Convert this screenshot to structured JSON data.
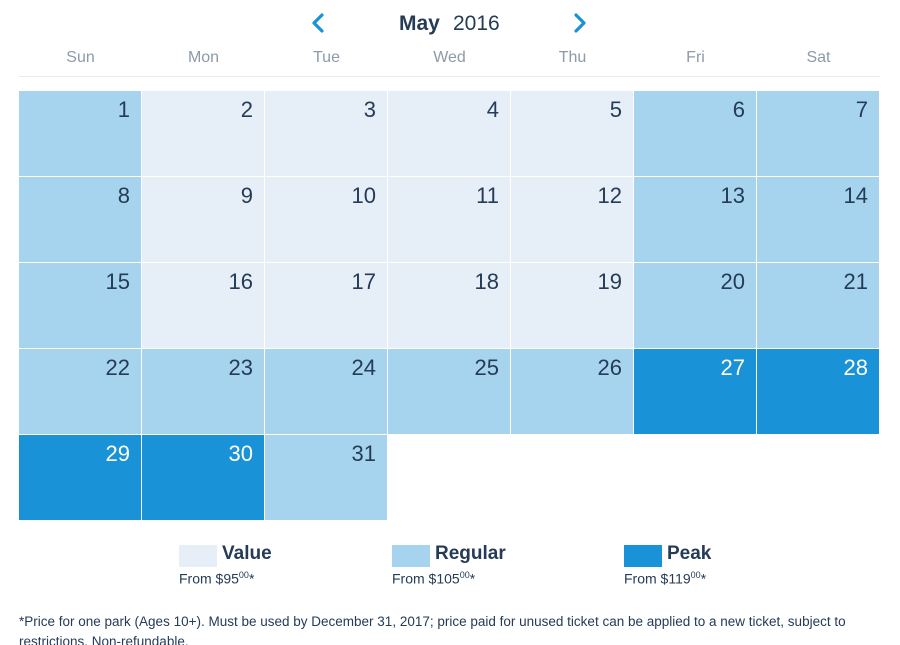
{
  "header": {
    "month": "May",
    "year": "2016",
    "prev_icon": "chevron-left-icon",
    "next_icon": "chevron-right-icon",
    "accent_color": "#1a92d7"
  },
  "weekdays": [
    "Sun",
    "Mon",
    "Tue",
    "Wed",
    "Thu",
    "Fri",
    "Sat"
  ],
  "days": [
    {
      "day": "1",
      "tier": "regular"
    },
    {
      "day": "2",
      "tier": "value"
    },
    {
      "day": "3",
      "tier": "value"
    },
    {
      "day": "4",
      "tier": "value"
    },
    {
      "day": "5",
      "tier": "value"
    },
    {
      "day": "6",
      "tier": "regular"
    },
    {
      "day": "7",
      "tier": "regular"
    },
    {
      "day": "8",
      "tier": "regular"
    },
    {
      "day": "9",
      "tier": "value"
    },
    {
      "day": "10",
      "tier": "value"
    },
    {
      "day": "11",
      "tier": "value"
    },
    {
      "day": "12",
      "tier": "value"
    },
    {
      "day": "13",
      "tier": "regular"
    },
    {
      "day": "14",
      "tier": "regular"
    },
    {
      "day": "15",
      "tier": "regular"
    },
    {
      "day": "16",
      "tier": "value"
    },
    {
      "day": "17",
      "tier": "value"
    },
    {
      "day": "18",
      "tier": "value"
    },
    {
      "day": "19",
      "tier": "value"
    },
    {
      "day": "20",
      "tier": "regular"
    },
    {
      "day": "21",
      "tier": "regular"
    },
    {
      "day": "22",
      "tier": "regular"
    },
    {
      "day": "23",
      "tier": "regular"
    },
    {
      "day": "24",
      "tier": "regular"
    },
    {
      "day": "25",
      "tier": "regular"
    },
    {
      "day": "26",
      "tier": "regular"
    },
    {
      "day": "27",
      "tier": "peak"
    },
    {
      "day": "28",
      "tier": "peak"
    },
    {
      "day": "29",
      "tier": "peak"
    },
    {
      "day": "30",
      "tier": "peak"
    },
    {
      "day": "31",
      "tier": "regular"
    }
  ],
  "legend": [
    {
      "tier": "value",
      "name": "Value",
      "price_prefix": "From $95",
      "price_cents": "00",
      "price_suffix": "*",
      "color": "#e6eef8"
    },
    {
      "tier": "regular",
      "name": "Regular",
      "price_prefix": "From $105",
      "price_cents": "00",
      "price_suffix": "*",
      "color": "#a6d4ee"
    },
    {
      "tier": "peak",
      "name": "Peak",
      "price_prefix": "From $119",
      "price_cents": "00",
      "price_suffix": "*",
      "color": "#1a92d7"
    }
  ],
  "footnote": "*Price for one park (Ages 10+). Must be used by December 31, 2017; price paid for unused ticket can be applied to a new ticket, subject to restrictions. Non-refundable."
}
